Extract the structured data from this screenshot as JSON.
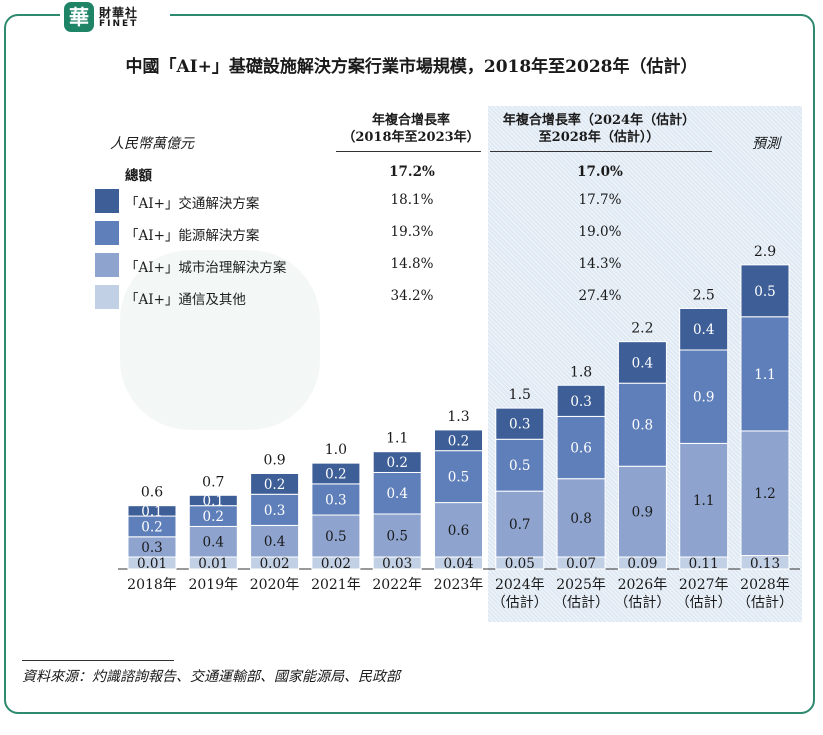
{
  "brand": {
    "seal": "華",
    "name_cn": "財華社",
    "name_en": "FINET"
  },
  "title": "中國「AI+」基礎設施解決方案行業市場規模，2018年至2028年（估計）",
  "unit_label": "人民幣萬億元",
  "forecast_label": "預測",
  "header_hist": [
    "年複合增長率",
    "（2018年至2023年）"
  ],
  "header_fcst": [
    "年複合增長率（2024年（估計）",
    "至2028年（估計））"
  ],
  "total_label": "總額",
  "cagr_total": {
    "hist": "17.2%",
    "fcst": "17.0%"
  },
  "legend": [
    {
      "label": "「AI+」交通解決方案",
      "color": "#3d5e97",
      "cagr_hist": "18.1%",
      "cagr_fcst": "17.7%"
    },
    {
      "label": "「AI+」能源解決方案",
      "color": "#5f7fba",
      "cagr_hist": "19.3%",
      "cagr_fcst": "19.0%"
    },
    {
      "label": "「AI+」城市治理解決方案",
      "color": "#8ea4cf",
      "cagr_hist": "14.8%",
      "cagr_fcst": "14.3%"
    },
    {
      "label": "「AI+」通信及其他",
      "color": "#c2d0e6",
      "cagr_hist": "34.2%",
      "cagr_fcst": "27.4%"
    }
  ],
  "source": "資料來源：灼識諮詢報告、交通運輸部、國家能源局、民政部",
  "chart_data": {
    "type": "bar",
    "stacked": true,
    "categories": [
      "2018年",
      "2019年",
      "2020年",
      "2021年",
      "2022年",
      "2023年",
      "2024年\n（估計）",
      "2025年\n（估計）",
      "2026年\n（估計）",
      "2027年\n（估計）",
      "2028年\n（估計）"
    ],
    "series": [
      {
        "name": "「AI+」通信及其他",
        "values": [
          0.01,
          0.01,
          0.02,
          0.02,
          0.03,
          0.04,
          0.05,
          0.07,
          0.09,
          0.11,
          0.13
        ]
      },
      {
        "name": "「AI+」城市治理解決方案",
        "values": [
          0.3,
          0.4,
          0.4,
          0.5,
          0.5,
          0.6,
          0.7,
          0.8,
          0.9,
          1.1,
          1.2
        ]
      },
      {
        "name": "「AI+」能源解決方案",
        "values": [
          0.2,
          0.2,
          0.3,
          0.3,
          0.4,
          0.5,
          0.5,
          0.6,
          0.8,
          0.9,
          1.1
        ]
      },
      {
        "name": "「AI+」交通解決方案",
        "values": [
          0.1,
          0.1,
          0.2,
          0.2,
          0.2,
          0.2,
          0.3,
          0.3,
          0.4,
          0.4,
          0.5
        ]
      }
    ],
    "totals": [
      0.6,
      0.7,
      0.9,
      1.0,
      1.1,
      1.3,
      1.5,
      1.8,
      2.2,
      2.5,
      2.9
    ],
    "value_labels": [
      [
        "0.01",
        "0.01",
        "0.02",
        "0.02",
        "0.03",
        "0.04",
        "0.05",
        "0.07",
        "0.09",
        "0.11",
        "0.13"
      ],
      [
        "0.3",
        "0.4",
        "0.4",
        "0.5",
        "0.5",
        "0.6",
        "0.7",
        "0.8",
        "0.9",
        "1.1",
        "1.2"
      ],
      [
        "0.2",
        "0.2",
        "0.3",
        "0.3",
        "0.4",
        "0.5",
        "0.5",
        "0.6",
        "0.8",
        "0.9",
        "1.1"
      ],
      [
        "0.1",
        "0.1",
        "0.2",
        "0.2",
        "0.2",
        "0.2",
        "0.3",
        "0.3",
        "0.4",
        "0.4",
        "0.5"
      ]
    ],
    "total_labels": [
      "0.6",
      "0.7",
      "0.9",
      "1.0",
      "1.1",
      "1.3",
      "1.5",
      "1.8",
      "2.2",
      "2.5",
      "2.9"
    ],
    "ylabel": "人民幣萬億元",
    "ylim": [
      0,
      2.9
    ],
    "grid": false,
    "legend_position": "top-left"
  }
}
